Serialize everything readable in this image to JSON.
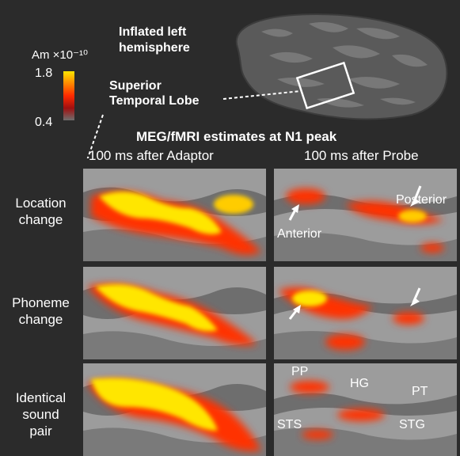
{
  "brain": {
    "title_line1": "Inflated left",
    "title_line2": "hemisphere",
    "region_line1": "Superior",
    "region_line2": "Temporal Lobe"
  },
  "colorbar": {
    "unit": "Am ×10⁻¹⁰",
    "max": "1.8",
    "min": "0.4",
    "color_high": "#ffe600",
    "color_mid": "#ff2a00",
    "color_low": "#777777"
  },
  "figure": {
    "heading": "MEG/fMRI estimates at N1 peak",
    "col1": "100 ms after Adaptor",
    "col2": "100 ms after Probe"
  },
  "rows": [
    {
      "line1": "Location",
      "line2": "change"
    },
    {
      "line1": "Phoneme",
      "line2": "change"
    },
    {
      "line1": "Identical",
      "line2": "sound",
      "line3": "pair"
    }
  ],
  "annotations": {
    "posterior": "Posterior",
    "anterior": "Anterior",
    "pp": "PP",
    "hg": "HG",
    "pt": "PT",
    "sts": "STS",
    "stg": "STG"
  }
}
